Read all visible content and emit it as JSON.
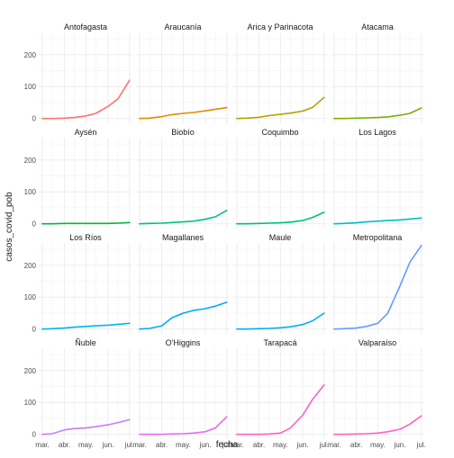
{
  "chart_data": {
    "type": "line",
    "layout": "facet-grid",
    "ncol": 4,
    "nrow": 4,
    "title": "",
    "xlabel": "fecha",
    "ylabel": "casos_covid_pob",
    "grid": true,
    "legend": "none",
    "ylim": [
      -15,
      270
    ],
    "yticks": [
      0,
      100,
      200
    ],
    "xlim": [
      "2020-02-25",
      "2020-07-05"
    ],
    "xticks": [
      {
        "date": "2020-03-01",
        "label": "mar."
      },
      {
        "date": "2020-04-01",
        "label": "abr."
      },
      {
        "date": "2020-05-01",
        "label": "may."
      },
      {
        "date": "2020-06-01",
        "label": "jun."
      },
      {
        "date": "2020-07-01",
        "label": "jul."
      }
    ],
    "x": [
      "2020-03-01",
      "2020-03-15",
      "2020-04-01",
      "2020-04-15",
      "2020-05-01",
      "2020-05-15",
      "2020-06-01",
      "2020-06-15",
      "2020-07-01"
    ],
    "series": [
      {
        "name": "Antofagasta",
        "color": "#F8766D",
        "values": [
          0,
          0,
          1,
          3,
          8,
          16,
          38,
          62,
          120
        ]
      },
      {
        "name": "Araucanía",
        "color": "#DE8C00",
        "values": [
          0,
          1,
          6,
          12,
          16,
          19,
          24,
          29,
          34
        ]
      },
      {
        "name": "Arica y Parinacota",
        "color": "#B79F00",
        "values": [
          0,
          1,
          4,
          9,
          13,
          17,
          23,
          35,
          66
        ]
      },
      {
        "name": "Atacama",
        "color": "#7CAE00",
        "values": [
          0,
          0,
          1,
          2,
          3,
          5,
          10,
          16,
          33
        ]
      },
      {
        "name": "Aysén",
        "color": "#00BA38",
        "values": [
          0,
          0,
          1,
          1,
          1,
          1,
          1,
          2,
          4
        ]
      },
      {
        "name": "Biobío",
        "color": "#00C08B",
        "values": [
          0,
          1,
          2,
          4,
          6,
          8,
          14,
          22,
          42
        ]
      },
      {
        "name": "Coquimbo",
        "color": "#00BF7D",
        "values": [
          0,
          0,
          1,
          2,
          3,
          5,
          10,
          20,
          36
        ]
      },
      {
        "name": "Los Lagos",
        "color": "#00BFC4",
        "values": [
          0,
          1,
          3,
          6,
          8,
          10,
          12,
          15,
          18
        ]
      },
      {
        "name": "Los Ríos",
        "color": "#00B4F0",
        "values": [
          0,
          1,
          3,
          6,
          8,
          10,
          12,
          15,
          18
        ]
      },
      {
        "name": "Magallanes",
        "color": "#00A9FF",
        "values": [
          0,
          2,
          10,
          35,
          50,
          58,
          64,
          72,
          84
        ]
      },
      {
        "name": "Maule",
        "color": "#00ADFA",
        "values": [
          0,
          0,
          1,
          2,
          4,
          7,
          14,
          26,
          50
        ]
      },
      {
        "name": "Metropolitana",
        "color": "#619CFF",
        "values": [
          0,
          1,
          3,
          8,
          18,
          50,
          135,
          210,
          262
        ]
      },
      {
        "name": "Ñuble",
        "color": "#C77CFF",
        "values": [
          0,
          2,
          14,
          18,
          20,
          24,
          30,
          37,
          46
        ]
      },
      {
        "name": "O'Higgins",
        "color": "#E76BF3",
        "values": [
          0,
          0,
          0,
          1,
          2,
          4,
          8,
          20,
          55
        ]
      },
      {
        "name": "Tarapacá",
        "color": "#FF61C3",
        "values": [
          0,
          0,
          0,
          1,
          4,
          20,
          60,
          110,
          155
        ]
      },
      {
        "name": "Valparaíso",
        "color": "#FF62BC",
        "values": [
          0,
          0,
          1,
          2,
          4,
          8,
          16,
          32,
          58
        ]
      }
    ]
  }
}
